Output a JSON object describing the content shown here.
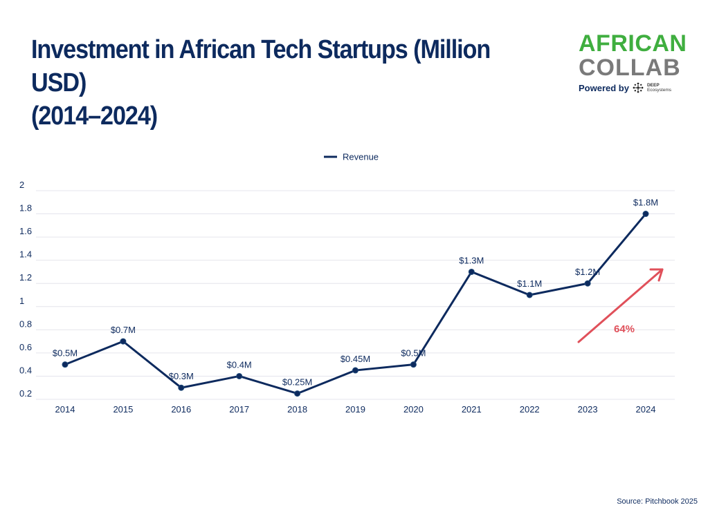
{
  "header": {
    "title_line1": "Investment in African Tech Startups (Million USD)",
    "title_line2": "(2014–2024)"
  },
  "logo": {
    "line1": "AFRICAN",
    "line2": "COLLAB",
    "powered_by": "Powered by",
    "partner_line1": "DEEP",
    "partner_line2": "Ecosystems",
    "colors": {
      "green": "#3fae3f",
      "gray": "#7a7a7a",
      "navy": "#0d2a5e"
    }
  },
  "source": "Source: Pitchbook 2025",
  "chart_data": {
    "type": "line",
    "title": "Investment in African Tech Startups (Million USD) (2014–2024)",
    "xlabel": "",
    "ylabel": "",
    "categories": [
      "2014",
      "2015",
      "2016",
      "2017",
      "2018",
      "2019",
      "2020",
      "2021",
      "2022",
      "2023",
      "2024"
    ],
    "series": [
      {
        "name": "Revenue",
        "color": "#0d2a5e",
        "values": [
          0.5,
          0.7,
          0.3,
          0.4,
          0.25,
          0.45,
          0.5,
          1.3,
          1.1,
          1.2,
          1.8
        ],
        "labels": [
          "$0.5M",
          "$0.7M",
          "$0.3M",
          "$0.4M",
          "$0.25M",
          "$0.45M",
          "$0.5M",
          "$1.3M",
          "$1.1M",
          "$1.2M",
          "$1.8M"
        ]
      }
    ],
    "ylim": [
      0.2,
      2
    ],
    "yticks": [
      "0.2",
      "0.4",
      "0.6",
      "0.8",
      "1",
      "1.2",
      "1.4",
      "1.6",
      "1.8",
      "2"
    ],
    "grid": true,
    "legend": {
      "position": "top-center",
      "entries": [
        "Revenue"
      ]
    },
    "annotation": {
      "text": "64%",
      "color": "#e0505a",
      "kind": "upward-arrow"
    }
  }
}
